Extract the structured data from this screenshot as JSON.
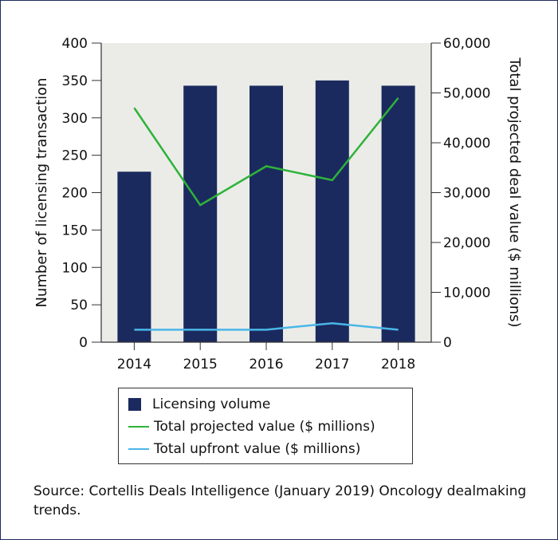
{
  "chart_data": {
    "type": "bar",
    "categories": [
      "2014",
      "2015",
      "2016",
      "2017",
      "2018"
    ],
    "series": [
      {
        "name": "Licensing volume",
        "kind": "bar",
        "axis": "left",
        "color": "#1b2a5e",
        "values": [
          228,
          343,
          343,
          350,
          343
        ]
      },
      {
        "name": "Total projected value ($ millions)",
        "kind": "line",
        "axis": "right",
        "color": "#2eb33a",
        "values": [
          47000,
          27500,
          35300,
          32500,
          49000
        ]
      },
      {
        "name": "Total upfront value ($ millions)",
        "kind": "line",
        "axis": "right",
        "color": "#4ab6e8",
        "values": [
          2500,
          2500,
          2500,
          3800,
          2500
        ]
      }
    ],
    "ylabel": "Number of licensing transaction",
    "y2label": "Total projected deal value ($ millions)",
    "ylim": [
      0,
      400
    ],
    "y2lim": [
      0,
      60000
    ],
    "yticks": [
      "0",
      "50",
      "100",
      "150",
      "200",
      "250",
      "300",
      "350",
      "400"
    ],
    "y2ticks": [
      "0",
      "10,000",
      "20,000",
      "30,000",
      "40,000",
      "50,000",
      "60,000"
    ],
    "grid": false,
    "plot_background": "#ebece7",
    "legend_position": "bottom"
  },
  "legend": {
    "volume": "Licensing volume",
    "projected": "Total projected value ($ millions)",
    "upfront": "Total upfront value ($ millions)"
  },
  "source_text": "Source: Cortellis Deals Intelligence (January 2019) Oncology dealmaking trends."
}
